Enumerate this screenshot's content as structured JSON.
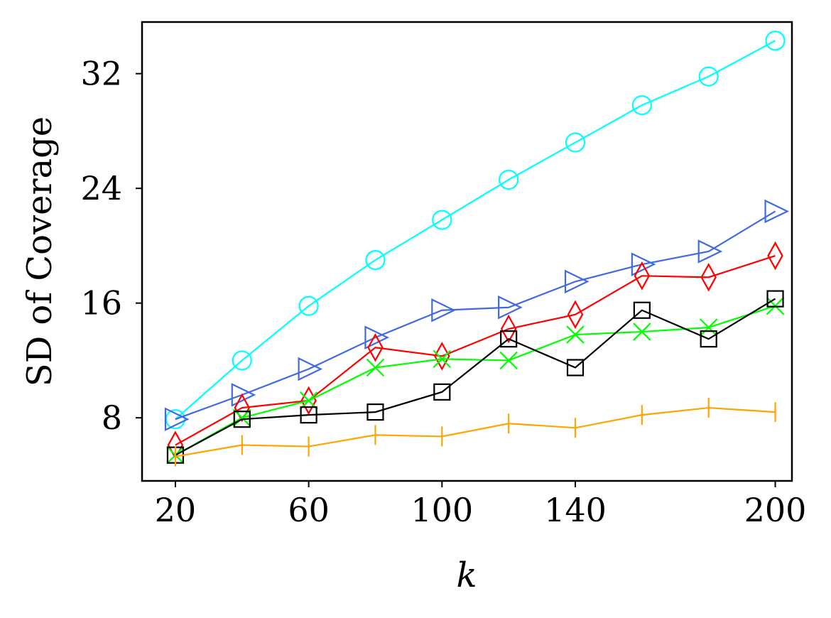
{
  "chart_data": {
    "type": "line",
    "title": "",
    "xlabel": "k",
    "ylabel": "SD of Coverage",
    "x": [
      20,
      40,
      60,
      80,
      100,
      120,
      140,
      160,
      180,
      200
    ],
    "xticks": [
      "20",
      "60",
      "100",
      "140",
      "200"
    ],
    "xtick_values": [
      20,
      60,
      100,
      140,
      200
    ],
    "yticks": [
      "8",
      "16",
      "24",
      "32"
    ],
    "ytick_values": [
      8,
      16,
      24,
      32
    ],
    "xlim": [
      10,
      205
    ],
    "ylim": [
      3.6,
      35.6
    ],
    "grid": false,
    "legend": "none",
    "series": [
      {
        "name": "cyan-circle",
        "color": "#00FFFF",
        "marker": "circle",
        "values": [
          7.9,
          12.0,
          15.8,
          19.0,
          21.8,
          24.6,
          27.2,
          29.8,
          31.8,
          34.3
        ]
      },
      {
        "name": "blue-triangle",
        "color": "#4169E1",
        "marker": "triangle-right",
        "values": [
          7.9,
          9.6,
          11.4,
          13.6,
          15.5,
          15.7,
          17.5,
          18.7,
          19.6,
          22.4
        ]
      },
      {
        "name": "red-diamond",
        "color": "#FF0000",
        "marker": "diamond",
        "values": [
          6.1,
          8.7,
          9.2,
          12.9,
          12.3,
          14.2,
          15.2,
          17.9,
          17.8,
          19.3
        ]
      },
      {
        "name": "green-x",
        "color": "#00FF00",
        "marker": "x",
        "values": [
          5.4,
          8.0,
          9.2,
          11.5,
          12.1,
          12.0,
          13.8,
          14.0,
          14.3,
          15.8
        ]
      },
      {
        "name": "black-square",
        "color": "#000000",
        "marker": "square",
        "values": [
          5.4,
          7.9,
          8.2,
          8.4,
          9.8,
          13.5,
          11.5,
          15.5,
          13.5,
          16.3
        ]
      },
      {
        "name": "orange-tick",
        "color": "#FFA500",
        "marker": "vline",
        "values": [
          5.3,
          6.1,
          6.0,
          6.8,
          6.7,
          7.6,
          7.3,
          8.2,
          8.7,
          8.4
        ]
      }
    ]
  }
}
